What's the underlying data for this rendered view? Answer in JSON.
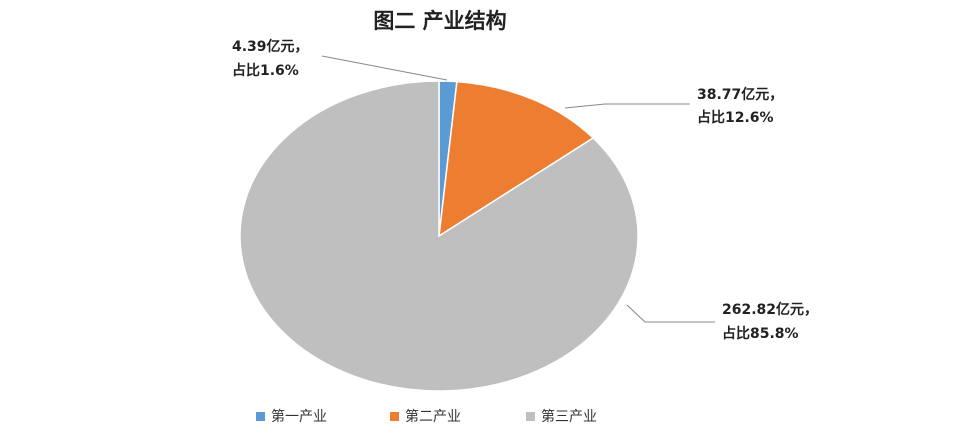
{
  "chart_data": {
    "type": "pie",
    "title": "图二  产业结构",
    "categories": [
      "第一产业",
      "第二产业",
      "第三产业"
    ],
    "values": [
      4.39,
      38.77,
      262.82
    ],
    "value_labels": [
      "4.39亿元，",
      "38.77亿元，",
      "262.82亿元，"
    ],
    "shares": [
      1.6,
      12.6,
      85.8
    ],
    "share_labels": [
      "占比1.6%",
      "占比12.6%",
      "占比85.8%"
    ],
    "colors": [
      "#5b9bd5",
      "#ed7d31",
      "#bfbfbf"
    ],
    "legend": "bottom"
  }
}
